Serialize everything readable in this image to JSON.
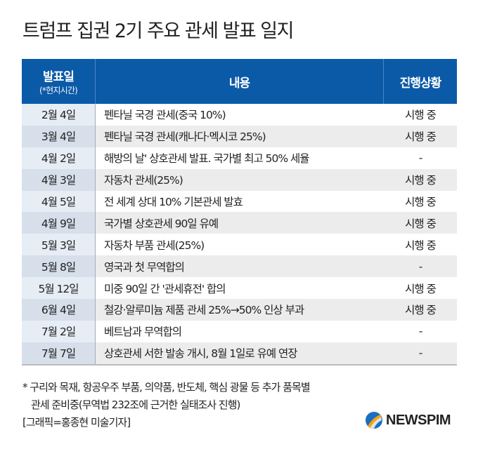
{
  "title": "트럼프 집권 2기 주요 관세 발표 일지",
  "header": {
    "date": "발표일",
    "date_sub": "(*현지시간)",
    "content": "내용",
    "status": "진행상황"
  },
  "rows": [
    {
      "date": "2월 4일",
      "content": "펜타닐 국경 관세(중국 10%)",
      "status": "시행 중"
    },
    {
      "date": "3월 4일",
      "content": "펜타닐 국경 관세(캐나다·멕시코 25%)",
      "status": "시행 중"
    },
    {
      "date": "4월 2일",
      "content": "해방의 날' 상호관세 발표. 국가별 최고 50% 세율",
      "status": "-"
    },
    {
      "date": "4월 3일",
      "content": "자동차 관세(25%)",
      "status": "시행 중"
    },
    {
      "date": "4월 5일",
      "content": "전 세계 상대 10% 기본관세 발효",
      "status": "시행 중"
    },
    {
      "date": "4월 9일",
      "content": "국가별 상호관세 90일 유예",
      "status": "시행 중"
    },
    {
      "date": "5월 3일",
      "content": "자동차 부품 관세(25%)",
      "status": "시행 중"
    },
    {
      "date": "5월 8일",
      "content": "영국과 첫 무역합의",
      "status": "-"
    },
    {
      "date": "5월 12일",
      "content": "미중 90일 간 '관세휴전' 합의",
      "status": "시행 중"
    },
    {
      "date": "6월 4일",
      "content": "철강·알루미늄 제품 관세 25%→50% 인상 부과",
      "status": "시행 중"
    },
    {
      "date": "7월 2일",
      "content": "베트남과 무역합의",
      "status": "-"
    },
    {
      "date": "7월 7일",
      "content": "상호관세 서한 발송 개시, 8월 1일로 유예 연장",
      "status": "-"
    }
  ],
  "footnote": {
    "line1": "* 구리와 목재, 항공우주 부품, 의약품, 반도체, 핵심 광물 등 추가 품목별",
    "line2": "관세 준비중(무역법 232조에 근거한 실태조사 진행)",
    "credit": "[그래픽=홍종현 미술기자]"
  },
  "logo": {
    "text": "NEWSPIM"
  },
  "colors": {
    "header_bg": "#0b5aa8",
    "date_col": "#e6edf5",
    "alt_row": "#ececec"
  }
}
